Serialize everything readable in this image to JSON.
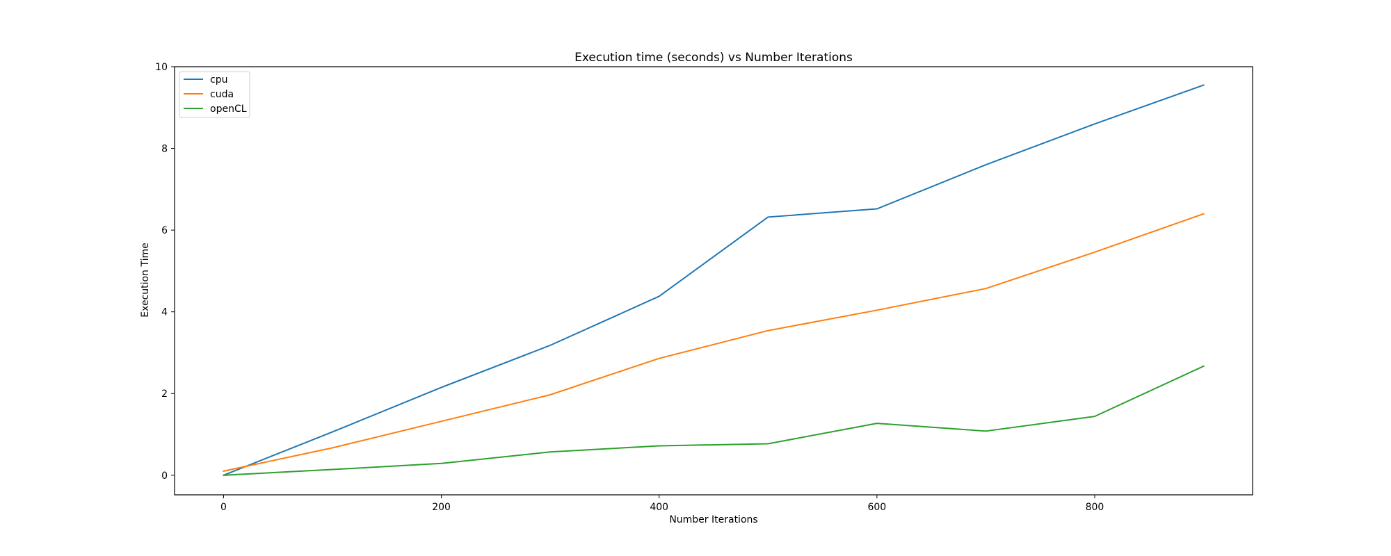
{
  "chart_data": {
    "type": "line",
    "title": "Execution time (seconds) vs Number Iterations",
    "xlabel": "Number Iterations",
    "ylabel": "Execution Time",
    "xlim": [
      -45,
      945
    ],
    "ylim": [
      -0.48,
      10
    ],
    "xticks": [
      0,
      200,
      400,
      600,
      800
    ],
    "yticks": [
      0,
      2,
      4,
      6,
      8,
      10
    ],
    "x": [
      0,
      100,
      200,
      300,
      400,
      500,
      600,
      700,
      800,
      900
    ],
    "series": [
      {
        "name": "cpu",
        "color": "#1f77b4",
        "values": [
          0.0,
          1.06,
          2.15,
          3.18,
          4.38,
          6.32,
          6.52,
          7.6,
          8.6,
          9.55
        ]
      },
      {
        "name": "cuda",
        "color": "#ff7f0e",
        "values": [
          0.1,
          0.67,
          1.32,
          1.97,
          2.86,
          3.54,
          4.04,
          4.57,
          5.46,
          6.4
        ]
      },
      {
        "name": "openCL",
        "color": "#2ca02c",
        "values": [
          0.0,
          0.14,
          0.29,
          0.57,
          0.72,
          0.77,
          1.27,
          1.08,
          1.44,
          2.67
        ]
      }
    ],
    "legend_position": "top-left",
    "grid": false
  }
}
